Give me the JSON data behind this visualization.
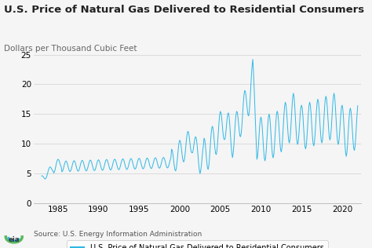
{
  "title": "U.S. Price of Natural Gas Delivered to Residential Consumers",
  "ylabel": "Dollars per Thousand Cubic Feet",
  "legend_label": "U.S. Price of Natural Gas Delivered to Residential Consumers",
  "source": "Source: U.S. Energy Information Administration",
  "line_color": "#2eb8e6",
  "background_color": "#f5f5f5",
  "plot_bg_color": "#f5f5f5",
  "grid_color": "#d0d0d0",
  "title_fontsize": 9.5,
  "ylabel_fontsize": 7.5,
  "tick_fontsize": 7.5,
  "legend_fontsize": 7,
  "source_fontsize": 6.5,
  "ylim": [
    0,
    25
  ],
  "yticks": [
    0,
    5,
    10,
    15,
    20,
    25
  ],
  "xticks": [
    1985,
    1990,
    1995,
    2000,
    2005,
    2010,
    2015,
    2020
  ],
  "xlim": [
    1982.0,
    2022.3
  ]
}
